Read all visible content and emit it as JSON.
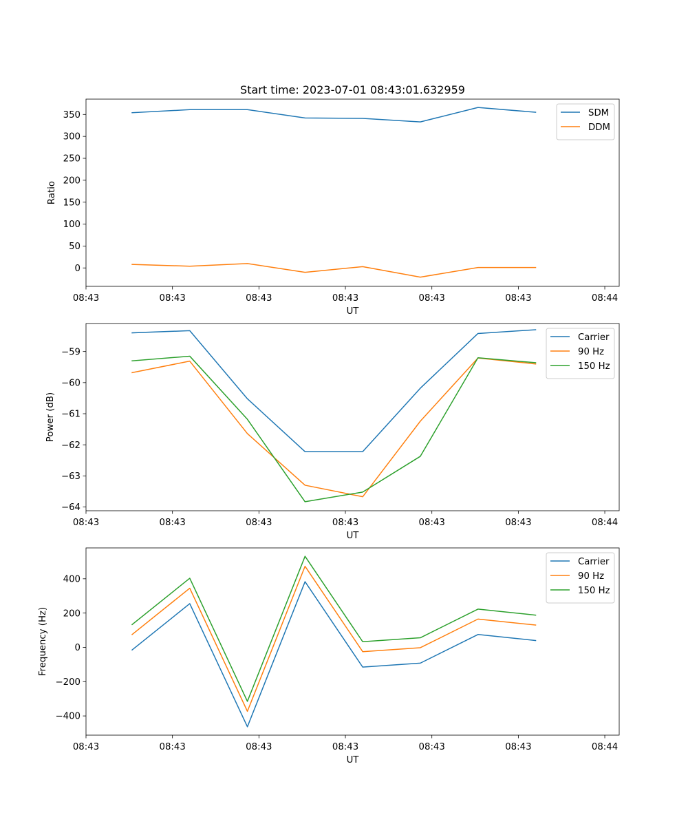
{
  "figure_title": "Start time: 2023-07-01 08:43:01.632959",
  "chart_data": [
    {
      "type": "line",
      "title": "Start time: 2023-07-01 08:43:01.632959",
      "xlabel": "UT",
      "ylabel": "Ratio",
      "x": [
        1,
        2,
        3,
        4,
        5,
        6,
        7,
        8
      ],
      "xlim": [
        0.2,
        9.45
      ],
      "xticks": [
        0.2,
        1.7,
        3.2,
        4.7,
        6.2,
        7.7,
        9.2
      ],
      "xtick_labels": [
        "08:43",
        "08:43",
        "08:43",
        "08:43",
        "08:43",
        "08:43",
        "08:44"
      ],
      "ylim": [
        -42,
        385
      ],
      "yticks": [
        0,
        50,
        100,
        150,
        200,
        250,
        300,
        350
      ],
      "ytick_labels": [
        "0",
        "50",
        "100",
        "150",
        "200",
        "250",
        "300",
        "350"
      ],
      "legend": "upper right",
      "series": [
        {
          "name": "SDM",
          "color": "#1f77b4",
          "values": [
            354,
            361,
            361,
            342,
            341,
            333,
            366,
            355
          ]
        },
        {
          "name": "DDM",
          "color": "#ff7f0e",
          "values": [
            8,
            4,
            10,
            -10,
            3,
            -21,
            1,
            1
          ]
        }
      ]
    },
    {
      "type": "line",
      "title": "",
      "xlabel": "UT",
      "ylabel": "Power (dB)",
      "x": [
        1,
        2,
        3,
        4,
        5,
        6,
        7,
        8
      ],
      "xlim": [
        0.2,
        9.45
      ],
      "xticks": [
        0.2,
        1.7,
        3.2,
        4.7,
        6.2,
        7.7,
        9.2
      ],
      "xtick_labels": [
        "08:43",
        "08:43",
        "08:43",
        "08:43",
        "08:43",
        "08:43",
        "08:44"
      ],
      "ylim": [
        -64.12,
        -58.1
      ],
      "yticks": [
        -64,
        -63,
        -62,
        -61,
        -60,
        -59
      ],
      "ytick_labels": [
        "−64",
        "−63",
        "−62",
        "−61",
        "−60",
        "−59"
      ],
      "legend": "upper right",
      "series": [
        {
          "name": "Carrier",
          "color": "#1f77b4",
          "values": [
            -58.4,
            -58.33,
            -60.52,
            -62.22,
            -62.22,
            -60.18,
            -58.42,
            -58.3
          ]
        },
        {
          "name": "90 Hz",
          "color": "#ff7f0e",
          "values": [
            -59.68,
            -59.31,
            -61.64,
            -63.3,
            -63.67,
            -61.24,
            -59.21,
            -59.4
          ]
        },
        {
          "name": "150 Hz",
          "color": "#2ca02c",
          "values": [
            -59.3,
            -59.15,
            -61.18,
            -63.83,
            -63.52,
            -62.37,
            -59.2,
            -59.36
          ]
        }
      ]
    },
    {
      "type": "line",
      "title": "",
      "xlabel": "UT",
      "ylabel": "Frequency (Hz)",
      "x": [
        1,
        2,
        3,
        4,
        5,
        6,
        7,
        8
      ],
      "xlim": [
        0.2,
        9.45
      ],
      "xticks": [
        0.2,
        1.7,
        3.2,
        4.7,
        6.2,
        7.7,
        9.2
      ],
      "xtick_labels": [
        "08:43",
        "08:43",
        "08:43",
        "08:43",
        "08:43",
        "08:43",
        "08:44"
      ],
      "ylim": [
        -512,
        580
      ],
      "yticks": [
        -400,
        -200,
        0,
        200,
        400
      ],
      "ytick_labels": [
        "−400",
        "−200",
        "0",
        "200",
        "400"
      ],
      "legend": "upper right",
      "series": [
        {
          "name": "Carrier",
          "color": "#1f77b4",
          "values": [
            -15,
            255,
            -463,
            383,
            -115,
            -92,
            75,
            40
          ]
        },
        {
          "name": "90 Hz",
          "color": "#ff7f0e",
          "values": [
            75,
            345,
            -373,
            473,
            -25,
            -2,
            165,
            130
          ]
        },
        {
          "name": "150 Hz",
          "color": "#2ca02c",
          "values": [
            133,
            403,
            -315,
            531,
            33,
            56,
            223,
            188
          ]
        }
      ]
    }
  ]
}
